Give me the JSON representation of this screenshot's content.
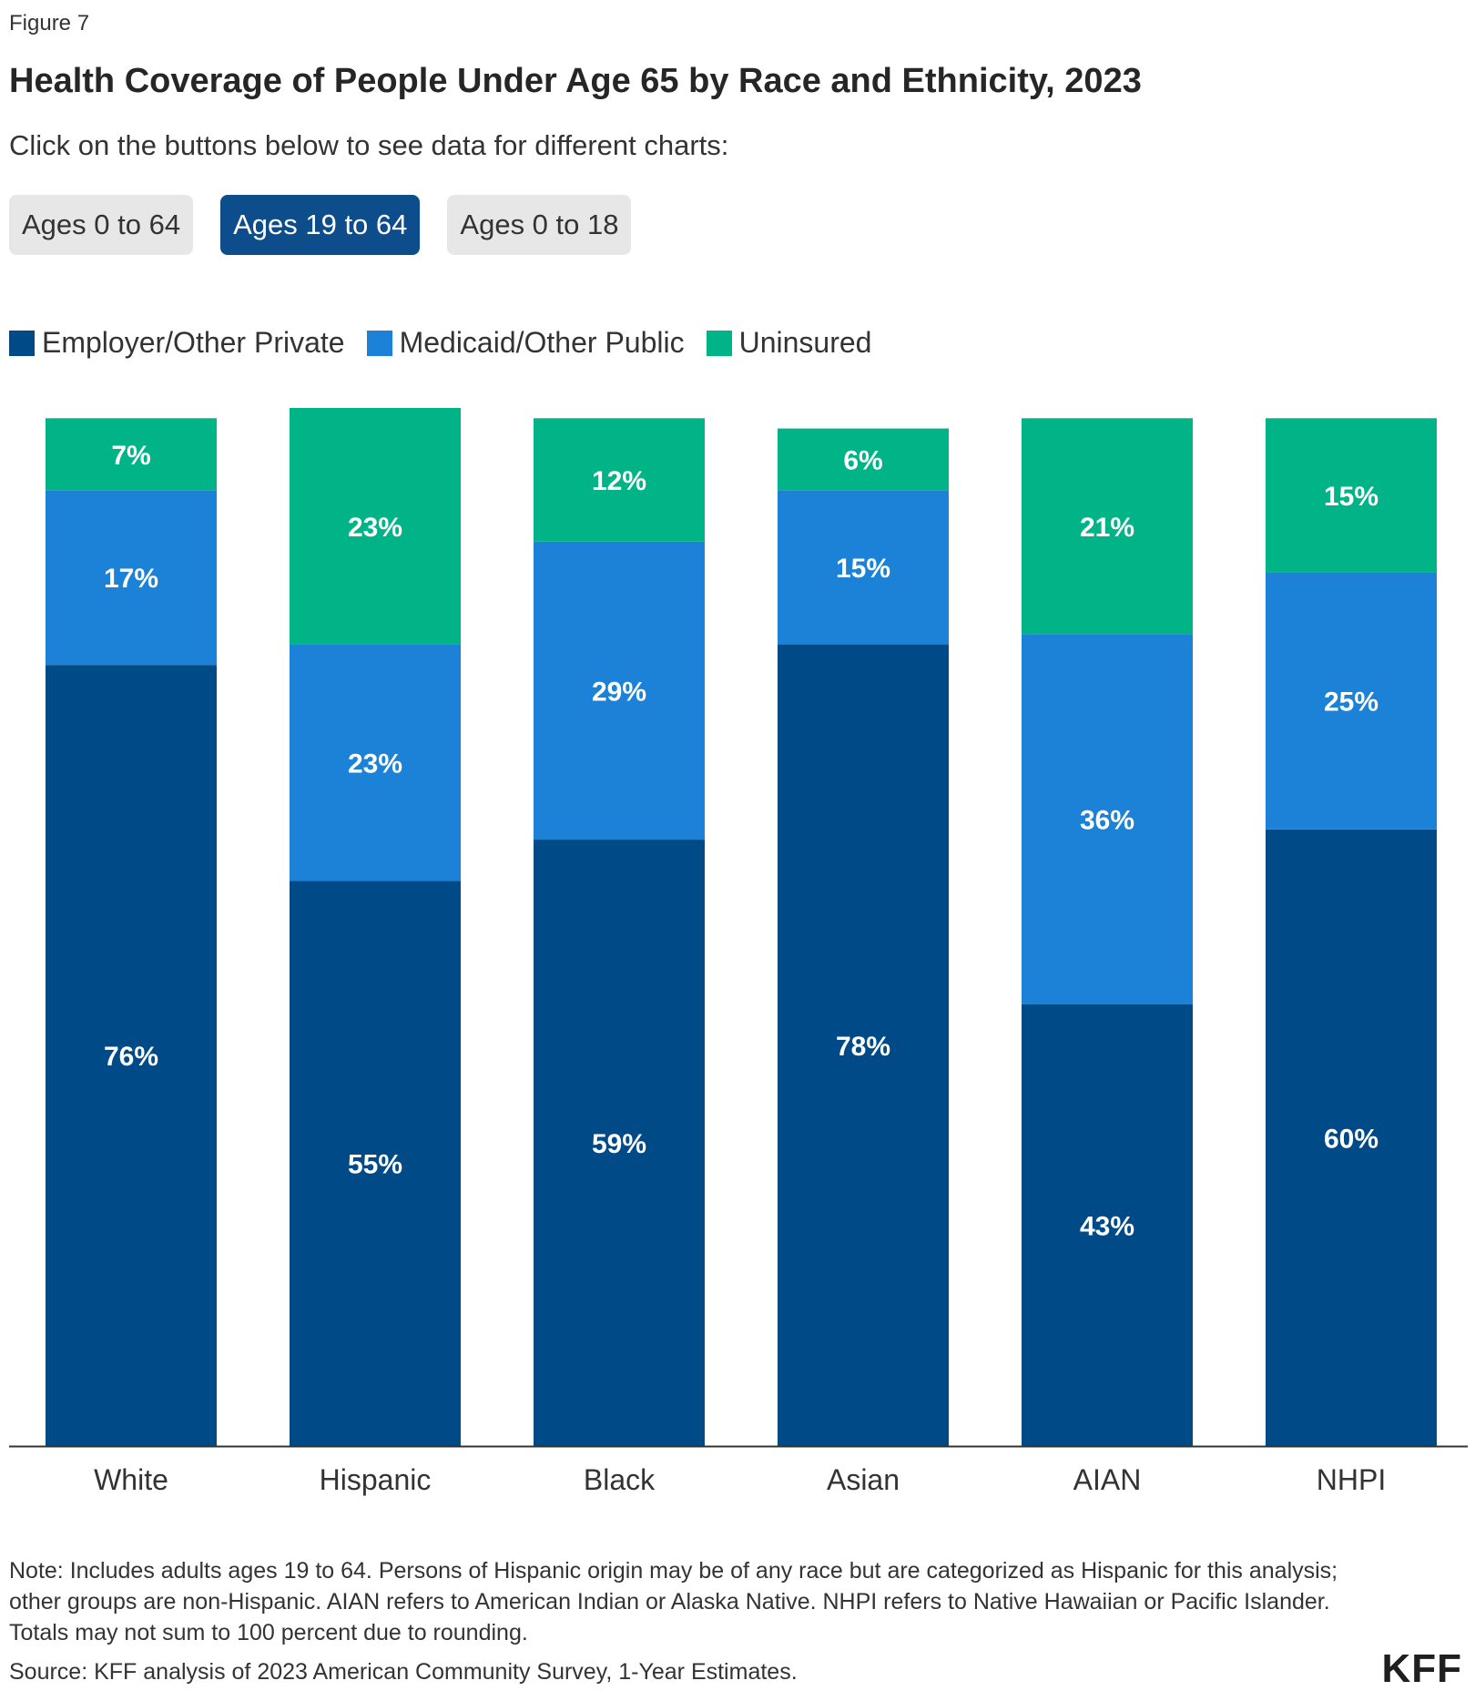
{
  "figure_label": "Figure 7",
  "title": "Health Coverage of People Under Age 65 by Race and Ethnicity, 2023",
  "subtitle": "Click on the buttons below to see data for different charts:",
  "tabs": [
    {
      "label": "Ages 0 to 64",
      "active": false
    },
    {
      "label": "Ages 19 to 64",
      "active": true
    },
    {
      "label": "Ages 0 to 18",
      "active": false
    }
  ],
  "chart_data": {
    "type": "bar",
    "stacked": true,
    "categories": [
      "White",
      "Hispanic",
      "Black",
      "Asian",
      "AIAN",
      "NHPI"
    ],
    "series": [
      {
        "name": "Employer/Other Private",
        "color": "#004a87",
        "values": [
          76,
          55,
          59,
          78,
          43,
          60
        ]
      },
      {
        "name": "Medicaid/Other Public",
        "color": "#1c82d8",
        "values": [
          17,
          23,
          29,
          15,
          36,
          25
        ]
      },
      {
        "name": "Uninsured",
        "color": "#00b487",
        "values": [
          7,
          23,
          12,
          6,
          21,
          15
        ]
      }
    ],
    "ylim": [
      0,
      101
    ],
    "legend_position": "top-left",
    "grid": false
  },
  "note": "Note: Includes adults ages 19 to 64. Persons of Hispanic origin may be of any race but are categorized as Hispanic for this analysis; other groups are non-Hispanic. AIAN refers to American Indian or Alaska Native. NHPI refers to Native Hawaiian or Pacific Islander. Totals may not sum to 100 percent due to rounding.",
  "source": "Source: KFF analysis of 2023 American Community Survey, 1-Year Estimates.",
  "logo": "KFF"
}
